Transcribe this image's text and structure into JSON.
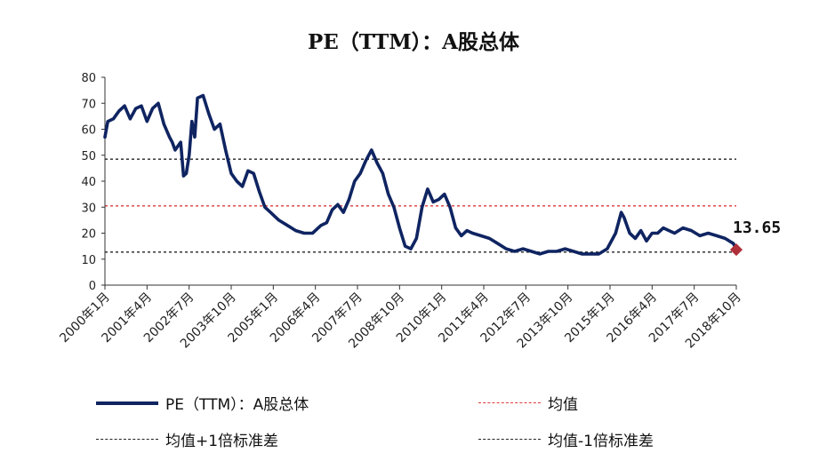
{
  "chart_data": {
    "type": "line",
    "title": "PE（TTM）：A股总体",
    "ylim": [
      0,
      80
    ],
    "yticks": [
      0,
      10,
      20,
      30,
      40,
      50,
      60,
      70,
      80
    ],
    "xticks": [
      "2000年1月",
      "2001年4月",
      "2002年7月",
      "2003年10月",
      "2005年1月",
      "2006年4月",
      "2007年7月",
      "2008年10月",
      "2010年1月",
      "2011年4月",
      "2012年7月",
      "2013年10月",
      "2015年1月",
      "2016年4月",
      "2017年7月",
      "2018年10月"
    ],
    "series": [
      {
        "name": "PE（TTM）：A股总体",
        "color": "#0f2461",
        "x": [
          "2000-01",
          "2000-02",
          "2000-04",
          "2000-06",
          "2000-08",
          "2000-10",
          "2000-12",
          "2001-02",
          "2001-04",
          "2001-06",
          "2001-08",
          "2001-10",
          "2001-12",
          "2002-01",
          "2002-02",
          "2002-04",
          "2002-05",
          "2002-06",
          "2002-07",
          "2002-08",
          "2002-09",
          "2002-10",
          "2002-12",
          "2003-02",
          "2003-04",
          "2003-06",
          "2003-08",
          "2003-10",
          "2003-12",
          "2004-02",
          "2004-04",
          "2004-06",
          "2004-08",
          "2004-10",
          "2004-12",
          "2005-03",
          "2005-06",
          "2005-09",
          "2005-12",
          "2006-03",
          "2006-06",
          "2006-08",
          "2006-10",
          "2006-12",
          "2007-02",
          "2007-04",
          "2007-06",
          "2007-08",
          "2007-10",
          "2007-12",
          "2008-02",
          "2008-04",
          "2008-06",
          "2008-08",
          "2008-10",
          "2008-12",
          "2009-02",
          "2009-04",
          "2009-06",
          "2009-08",
          "2009-10",
          "2009-12",
          "2010-02",
          "2010-04",
          "2010-06",
          "2010-08",
          "2010-10",
          "2010-12",
          "2011-03",
          "2011-06",
          "2011-09",
          "2011-12",
          "2012-03",
          "2012-06",
          "2012-09",
          "2012-12",
          "2013-03",
          "2013-06",
          "2013-09",
          "2013-12",
          "2014-03",
          "2014-06",
          "2014-09",
          "2014-12",
          "2015-03",
          "2015-05",
          "2015-06",
          "2015-08",
          "2015-10",
          "2015-12",
          "2016-02",
          "2016-04",
          "2016-06",
          "2016-08",
          "2016-10",
          "2016-12",
          "2017-03",
          "2017-06",
          "2017-09",
          "2017-12",
          "2018-03",
          "2018-06",
          "2018-09",
          "2018-10"
        ],
        "values": [
          57,
          63,
          64,
          67,
          69,
          64,
          68,
          69,
          63,
          68,
          70,
          62,
          57,
          55,
          52,
          55,
          42,
          43,
          50,
          63,
          57,
          72,
          73,
          66,
          60,
          62,
          52,
          43,
          40,
          38,
          44,
          43,
          36,
          30,
          28,
          25,
          23,
          21,
          20,
          20,
          23,
          24,
          29,
          31,
          28,
          33,
          40,
          43,
          48,
          52,
          47,
          43,
          35,
          30,
          22,
          15,
          14,
          18,
          30,
          37,
          32,
          33,
          35,
          30,
          22,
          19,
          21,
          20,
          19,
          18,
          16,
          14,
          13,
          14,
          13,
          12,
          13,
          13,
          14,
          13,
          12,
          12,
          12,
          14,
          20,
          28,
          26,
          20,
          18,
          21,
          17,
          20,
          20,
          22,
          21,
          20,
          22,
          21,
          19,
          20,
          19,
          18,
          16,
          13.65
        ]
      }
    ],
    "reference_lines": [
      {
        "name": "均值",
        "value": 30.5,
        "color": "#e03a3a"
      },
      {
        "name": "均值+1倍标准差",
        "value": 48.5,
        "color": "#222222"
      },
      {
        "name": "均值-1倍标准差",
        "value": 12.7,
        "color": "#222222"
      }
    ],
    "annotation": {
      "label": "13.65",
      "value": 13.65,
      "marker_color": "#b0303a"
    }
  },
  "legend": {
    "main": "PE（TTM）：A股总体",
    "mean": "均值",
    "upper": "均值+1倍标准差",
    "lower": "均值-1倍标准差"
  }
}
